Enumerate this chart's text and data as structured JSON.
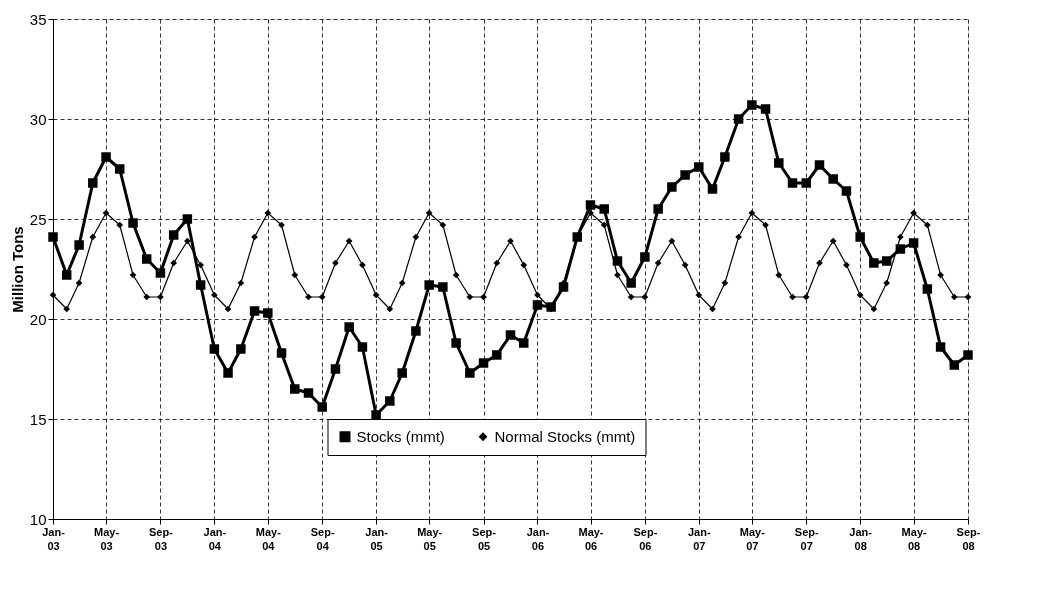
{
  "chart_data": {
    "type": "line",
    "ylabel": "Million Tons",
    "x": [
      "2003-01",
      "2003-02",
      "2003-03",
      "2003-04",
      "2003-05",
      "2003-06",
      "2003-07",
      "2003-08",
      "2003-09",
      "2003-10",
      "2003-11",
      "2003-12",
      "2004-01",
      "2004-02",
      "2004-03",
      "2004-04",
      "2004-05",
      "2004-06",
      "2004-07",
      "2004-08",
      "2004-09",
      "2004-10",
      "2004-11",
      "2004-12",
      "2005-01",
      "2005-02",
      "2005-03",
      "2005-04",
      "2005-05",
      "2005-06",
      "2005-07",
      "2005-08",
      "2005-09",
      "2005-10",
      "2005-11",
      "2005-12",
      "2006-01",
      "2006-02",
      "2006-03",
      "2006-04",
      "2006-05",
      "2006-06",
      "2006-07",
      "2006-08",
      "2006-09",
      "2006-10",
      "2006-11",
      "2006-12",
      "2007-01",
      "2007-02",
      "2007-03",
      "2007-04",
      "2007-05",
      "2007-06",
      "2007-07",
      "2007-08",
      "2007-09",
      "2007-10",
      "2007-11",
      "2007-12",
      "2008-01",
      "2008-02",
      "2008-03",
      "2008-04",
      "2008-05",
      "2008-06",
      "2008-07",
      "2008-08",
      "2008-09"
    ],
    "series": [
      {
        "name": "Stocks (mmt)",
        "color": "#000000",
        "marker": "square",
        "values": [
          24.1,
          22.2,
          23.7,
          26.8,
          28.1,
          27.5,
          24.8,
          23.0,
          22.3,
          24.2,
          25.0,
          21.7,
          18.5,
          17.3,
          18.5,
          20.4,
          20.3,
          18.3,
          16.5,
          16.3,
          15.6,
          17.5,
          19.6,
          18.6,
          15.2,
          15.9,
          17.3,
          19.4,
          21.7,
          21.6,
          18.8,
          17.3,
          17.8,
          18.2,
          19.2,
          18.8,
          20.7,
          20.6,
          21.6,
          24.1,
          25.7,
          25.5,
          22.9,
          21.8,
          23.1,
          25.5,
          26.6,
          27.2,
          27.6,
          26.5,
          28.1,
          30.0,
          30.7,
          30.5,
          27.8,
          26.8,
          26.8,
          27.7,
          27.0,
          26.4,
          24.1,
          22.8,
          22.9,
          23.5,
          23.8,
          21.5,
          18.6,
          17.7,
          18.2
        ]
      },
      {
        "name": "Normal Stocks (mmt)",
        "color": "#000000",
        "marker": "diamond",
        "values": [
          21.2,
          20.5,
          21.8,
          24.1,
          25.3,
          24.7,
          22.2,
          21.1,
          21.1,
          22.8,
          23.9,
          22.7,
          21.2,
          20.5,
          21.8,
          24.1,
          25.3,
          24.7,
          22.2,
          21.1,
          21.1,
          22.8,
          23.9,
          22.7,
          21.2,
          20.5,
          21.8,
          24.1,
          25.3,
          24.7,
          22.2,
          21.1,
          21.1,
          22.8,
          23.9,
          22.7,
          21.2,
          20.5,
          21.8,
          24.1,
          25.3,
          24.7,
          22.2,
          21.1,
          21.1,
          22.8,
          23.9,
          22.7,
          21.2,
          20.5,
          21.8,
          24.1,
          25.3,
          24.7,
          22.2,
          21.1,
          21.1,
          22.8,
          23.9,
          22.7,
          21.2,
          20.5,
          21.8,
          24.1,
          25.3,
          24.7,
          22.2,
          21.1,
          21.1
        ]
      }
    ],
    "xlim": [
      "2003-01",
      "2008-09"
    ],
    "xticks": [
      {
        "value": "2003-01",
        "label": "Jan-03"
      },
      {
        "value": "2003-05",
        "label": "May-03"
      },
      {
        "value": "2003-09",
        "label": "Sep-03"
      },
      {
        "value": "2004-01",
        "label": "Jan-04"
      },
      {
        "value": "2004-05",
        "label": "May-04"
      },
      {
        "value": "2004-09",
        "label": "Sep-04"
      },
      {
        "value": "2005-01",
        "label": "Jan-05"
      },
      {
        "value": "2005-05",
        "label": "May-05"
      },
      {
        "value": "2005-09",
        "label": "Sep-05"
      },
      {
        "value": "2006-01",
        "label": "Jan-06"
      },
      {
        "value": "2006-05",
        "label": "May-06"
      },
      {
        "value": "2006-09",
        "label": "Sep-06"
      },
      {
        "value": "2007-01",
        "label": "Jan-07"
      },
      {
        "value": "2007-05",
        "label": "May-07"
      },
      {
        "value": "2007-09",
        "label": "Sep-07"
      },
      {
        "value": "2008-01",
        "label": "Jan-08"
      },
      {
        "value": "2008-05",
        "label": "May-08"
      },
      {
        "value": "2008-09",
        "label": "Sep-08"
      }
    ],
    "ylim": [
      10,
      35
    ],
    "yticks": [
      10,
      15,
      20,
      25,
      30,
      35
    ],
    "grid": true,
    "legend": "bottom",
    "line_style": "solid"
  }
}
